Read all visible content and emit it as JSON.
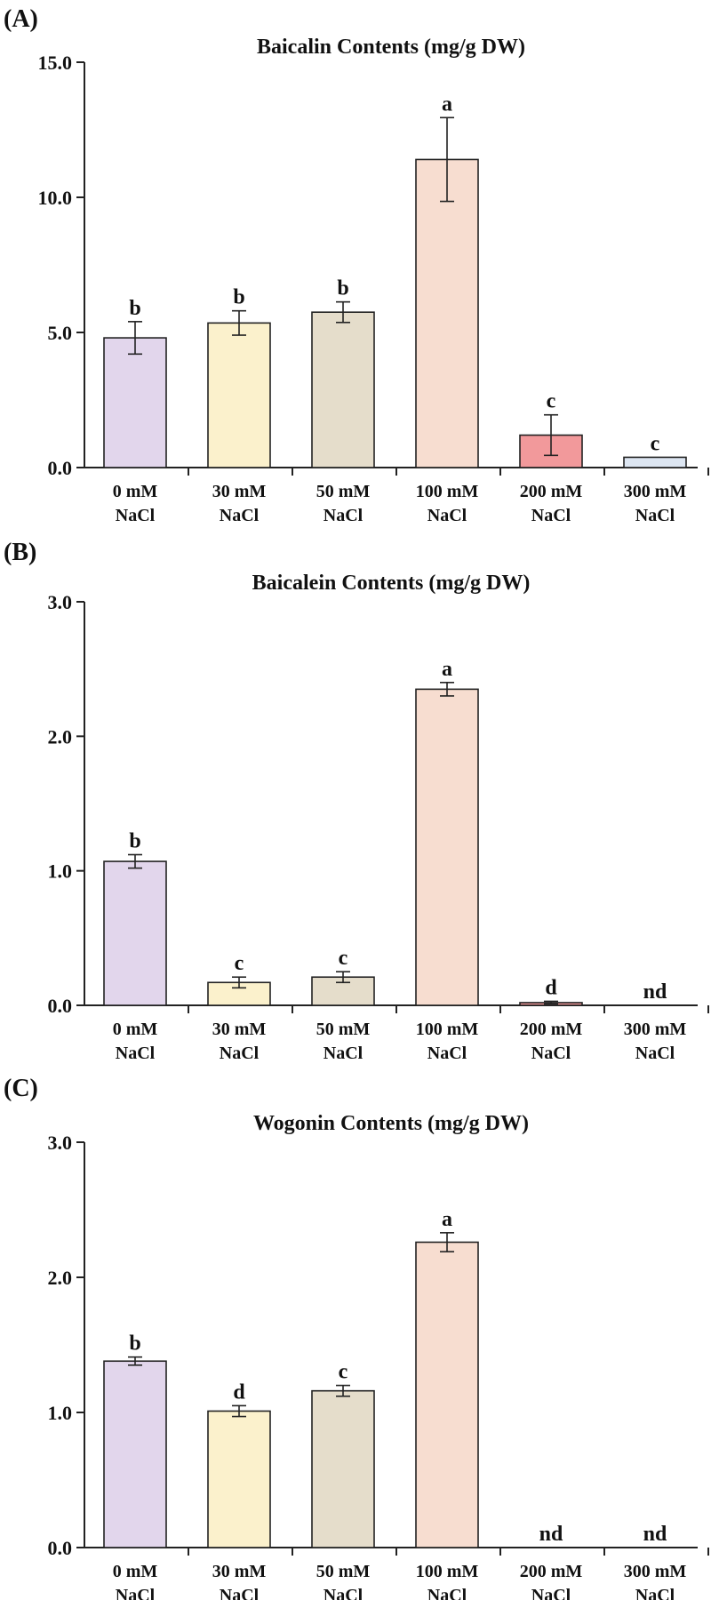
{
  "figure": {
    "panels": [
      "(A)",
      "(B)",
      "(C)"
    ]
  },
  "chart_data": [
    {
      "type": "bar",
      "panel_label": "(A)",
      "title": "Baicalin Contents (mg/g DW)",
      "categories": [
        [
          "0 mM",
          "NaCl"
        ],
        [
          "30 mM",
          "NaCl"
        ],
        [
          "50 mM",
          "NaCl"
        ],
        [
          "100 mM",
          "NaCl"
        ],
        [
          "200 mM",
          "NaCl"
        ],
        [
          "300 mM",
          "NaCl"
        ]
      ],
      "values": [
        4.8,
        5.35,
        5.75,
        11.4,
        1.2,
        0.38
      ],
      "errors": [
        0.6,
        0.45,
        0.38,
        1.55,
        0.75,
        0
      ],
      "significance": [
        "b",
        "b",
        "b",
        "a",
        "c",
        "c"
      ],
      "colors": [
        "#e2d6ec",
        "#fbf1cc",
        "#e5ddcb",
        "#f7ddd0",
        "#f2999b",
        "#dde6f2"
      ],
      "ylim": [
        0,
        15
      ],
      "yticks": [
        0,
        5,
        10,
        15
      ],
      "ytick_labels": [
        "0.0",
        "5.0",
        "10.0",
        "15.0"
      ],
      "xlabel": "",
      "ylabel": ""
    },
    {
      "type": "bar",
      "panel_label": "(B)",
      "title": "Baicalein Contents (mg/g DW)",
      "categories": [
        [
          "0 mM",
          "NaCl"
        ],
        [
          "30 mM",
          "NaCl"
        ],
        [
          "50 mM",
          "NaCl"
        ],
        [
          "100 mM",
          "NaCl"
        ],
        [
          "200 mM",
          "NaCl"
        ],
        [
          "300 mM",
          "NaCl"
        ]
      ],
      "values": [
        1.07,
        0.17,
        0.21,
        2.35,
        0.02,
        0
      ],
      "errors": [
        0.05,
        0.04,
        0.04,
        0.05,
        0.01,
        0
      ],
      "significance": [
        "b",
        "c",
        "c",
        "a",
        "d",
        "nd"
      ],
      "colors": [
        "#e2d6ec",
        "#fbf1cc",
        "#e5ddcb",
        "#f7ddd0",
        "#f2999b",
        "#dde6f2"
      ],
      "ylim": [
        0,
        3
      ],
      "yticks": [
        0,
        1,
        2,
        3
      ],
      "ytick_labels": [
        "0.0",
        "1.0",
        "2.0",
        "3.0"
      ],
      "xlabel": "",
      "ylabel": ""
    },
    {
      "type": "bar",
      "panel_label": "(C)",
      "title": "Wogonin Contents (mg/g DW)",
      "categories": [
        [
          "0 mM",
          "NaCl"
        ],
        [
          "30 mM",
          "NaCl"
        ],
        [
          "50 mM",
          "NaCl"
        ],
        [
          "100 mM",
          "NaCl"
        ],
        [
          "200 mM",
          "NaCl"
        ],
        [
          "300 mM",
          "NaCl"
        ]
      ],
      "values": [
        1.38,
        1.01,
        1.16,
        2.26,
        0,
        0
      ],
      "errors": [
        0.03,
        0.04,
        0.04,
        0.07,
        0,
        0
      ],
      "significance": [
        "b",
        "d",
        "c",
        "a",
        "nd",
        "nd"
      ],
      "colors": [
        "#e2d6ec",
        "#fbf1cc",
        "#e5ddcb",
        "#f7ddd0",
        "#f2999b",
        "#dde6f2"
      ],
      "ylim": [
        0,
        3
      ],
      "yticks": [
        0,
        1,
        2,
        3
      ],
      "ytick_labels": [
        "0.0",
        "1.0",
        "2.0",
        "3.0"
      ],
      "xlabel": "",
      "ylabel": ""
    }
  ]
}
